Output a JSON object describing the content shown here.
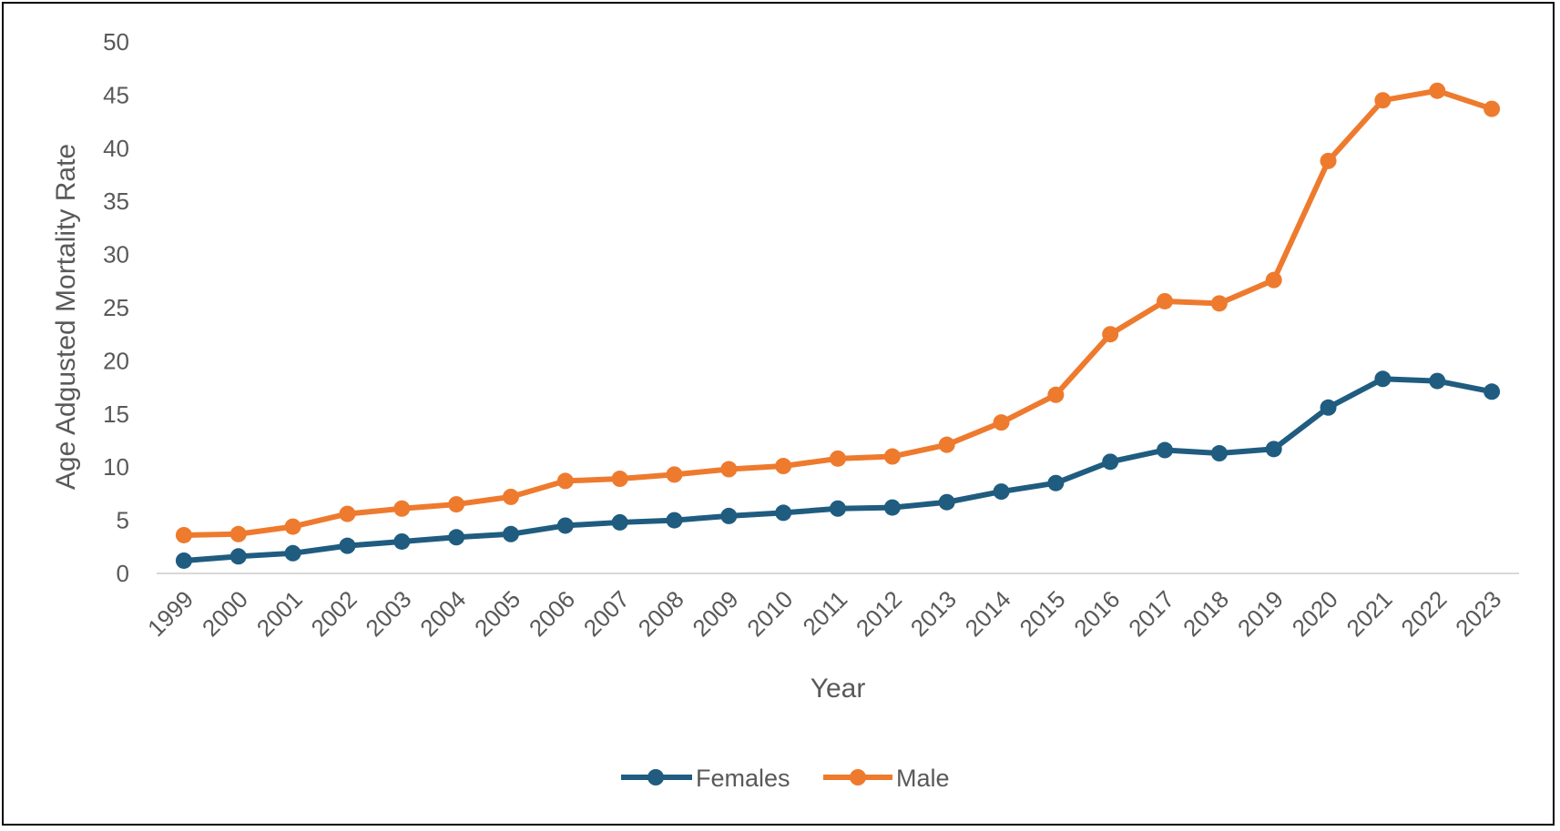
{
  "chart_data": {
    "type": "line",
    "xlabel": "Year",
    "ylabel": "Age Adgusted Mortality Rate",
    "ylim": [
      0,
      50
    ],
    "y_ticks": [
      0,
      5,
      10,
      15,
      20,
      25,
      30,
      35,
      40,
      45,
      50
    ],
    "grid": false,
    "legend_position": "bottom",
    "categories": [
      "1999",
      "2000",
      "2001",
      "2002",
      "2003",
      "2004",
      "2005",
      "2006",
      "2007",
      "2008",
      "2009",
      "2010",
      "2011",
      "2012",
      "2013",
      "2014",
      "2015",
      "2016",
      "2017",
      "2018",
      "2019",
      "2020",
      "2021",
      "2022",
      "2023"
    ],
    "series": [
      {
        "name": "Females",
        "color": "#1F5C7F",
        "values": [
          1.2,
          1.6,
          1.9,
          2.6,
          3.0,
          3.4,
          3.7,
          4.5,
          4.8,
          5.0,
          5.4,
          5.7,
          6.1,
          6.2,
          6.7,
          7.7,
          8.5,
          10.5,
          11.6,
          11.3,
          11.7,
          15.6,
          18.3,
          18.1,
          17.1
        ]
      },
      {
        "name": "Male",
        "color": "#EE7A2E",
        "values": [
          3.6,
          3.7,
          4.4,
          5.6,
          6.1,
          6.5,
          7.2,
          8.7,
          8.9,
          9.3,
          9.8,
          10.1,
          10.8,
          11.0,
          12.1,
          14.2,
          16.8,
          22.5,
          25.6,
          25.4,
          27.6,
          38.8,
          44.5,
          45.4,
          43.7
        ]
      }
    ]
  }
}
